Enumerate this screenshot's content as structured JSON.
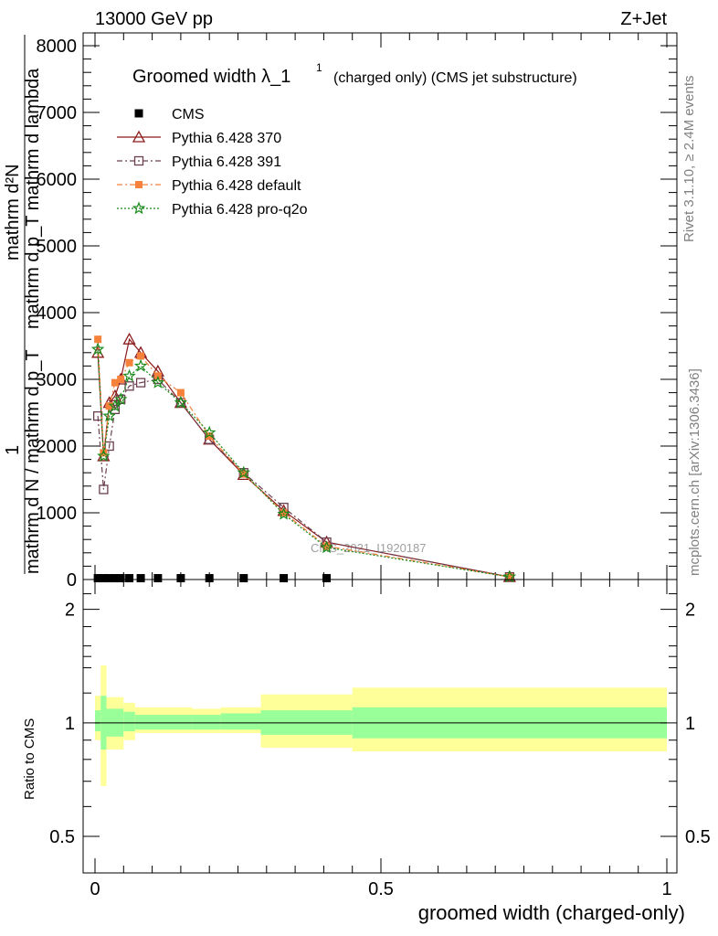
{
  "header": {
    "left": "13000 GeV pp",
    "right": "Z+Jet"
  },
  "side_labels": {
    "rivet": "Rivet 3.1.10, ≥ 2.4M events",
    "mcplots": "mcplots.cern.ch [arXiv:1306.3436]"
  },
  "colors": {
    "cms": "#000000",
    "p370": "#8b1a1a",
    "p391": "#6b4050",
    "pdefault": "#f5813a",
    "pq2o": "#1a8a1a",
    "band_inner": "#99ff99",
    "band_outer": "#ffff99"
  },
  "chart_data": [
    {
      "type": "line",
      "title": "Groomed width λ_1",
      "title_sup": "1",
      "title_note": "(charged only) (CMS jet substructure)",
      "ylabel_num": "mathrm d²N",
      "ylabel_num2": "mathrm d p_T mathrm d lambda",
      "ylabel_den": "mathrm d N / mathrm d p_T",
      "ylabel_one": "1",
      "watermark": "CMS_2021_I1920187",
      "xlim": [
        0,
        1
      ],
      "ylim": [
        0,
        8000
      ],
      "yticks": [
        0,
        1000,
        2000,
        3000,
        4000,
        5000,
        6000,
        7000,
        8000
      ],
      "yticklabels": [
        "0",
        "1000",
        "2000",
        "3000",
        "4000",
        "5000",
        "6000",
        "7000",
        "8000"
      ],
      "series": [
        {
          "name": "CMS",
          "key": "cms",
          "marker": "square",
          "x": [
            0.005,
            0.015,
            0.025,
            0.035,
            0.045,
            0.06,
            0.08,
            0.11,
            0.15,
            0.2,
            0.26,
            0.33,
            0.405
          ],
          "y": [
            20,
            20,
            20,
            20,
            20,
            20,
            20,
            20,
            20,
            20,
            20,
            20,
            20
          ]
        },
        {
          "name": "Pythia 6.428 370",
          "key": "p370",
          "marker": "triangle",
          "dash": "",
          "x": [
            0.005,
            0.015,
            0.025,
            0.035,
            0.045,
            0.06,
            0.08,
            0.11,
            0.15,
            0.2,
            0.26,
            0.33,
            0.405,
            0.725
          ],
          "y": [
            3400,
            1850,
            2650,
            2750,
            3000,
            3600,
            3400,
            3120,
            2650,
            2100,
            1570,
            1030,
            560,
            40
          ]
        },
        {
          "name": "Pythia 6.428 391",
          "key": "p391",
          "marker": "opensquare",
          "dash": "6,3,2,3",
          "x": [
            0.005,
            0.015,
            0.025,
            0.035,
            0.045,
            0.06,
            0.08,
            0.11,
            0.15,
            0.2,
            0.26,
            0.33,
            0.405,
            0.725
          ],
          "y": [
            2450,
            1350,
            2000,
            2550,
            2700,
            2900,
            2950,
            3000,
            2650,
            2100,
            1600,
            1080,
            560,
            40
          ]
        },
        {
          "name": "Pythia 6.428 default",
          "key": "pdefault",
          "marker": "fsquare",
          "dash": "6,3,2,3",
          "x": [
            0.005,
            0.015,
            0.025,
            0.035,
            0.045,
            0.06,
            0.08,
            0.11,
            0.15,
            0.2,
            0.26,
            0.33,
            0.405,
            0.725
          ],
          "y": [
            3600,
            1900,
            2600,
            2950,
            3000,
            3250,
            3350,
            3050,
            2800,
            2150,
            1580,
            1000,
            500,
            40
          ]
        },
        {
          "name": "Pythia 6.428 pro-q2o",
          "key": "pq2o",
          "marker": "star",
          "dash": "2,2",
          "x": [
            0.005,
            0.015,
            0.025,
            0.035,
            0.045,
            0.06,
            0.08,
            0.11,
            0.15,
            0.2,
            0.26,
            0.33,
            0.405,
            0.725
          ],
          "y": [
            3450,
            1850,
            2450,
            2600,
            2700,
            3050,
            3200,
            2950,
            2650,
            2200,
            1600,
            980,
            480,
            40
          ]
        }
      ]
    },
    {
      "type": "area",
      "ylabel": "Ratio to CMS",
      "xlabel": "groomed width (charged-only)",
      "xlim": [
        -0.02,
        1.01
      ],
      "ylim": [
        0.4,
        2.4
      ],
      "log_y": true,
      "xticks": [
        0,
        0.5,
        1
      ],
      "xticklabels": [
        "0",
        "0.5",
        "1"
      ],
      "yticks": [
        0.5,
        1,
        2
      ],
      "yticklabels": [
        "0.5",
        "1",
        "2"
      ],
      "bins": [
        {
          "x0": 0.0,
          "x1": 0.01,
          "inner": [
            0.95,
            1.08
          ],
          "outer": [
            0.9,
            1.18
          ]
        },
        {
          "x0": 0.01,
          "x1": 0.02,
          "inner": [
            0.85,
            1.18
          ],
          "outer": [
            0.68,
            1.42
          ]
        },
        {
          "x0": 0.02,
          "x1": 0.05,
          "inner": [
            0.92,
            1.09
          ],
          "outer": [
            0.85,
            1.17
          ]
        },
        {
          "x0": 0.05,
          "x1": 0.07,
          "inner": [
            0.95,
            1.07
          ],
          "outer": [
            0.9,
            1.13
          ]
        },
        {
          "x0": 0.07,
          "x1": 0.17,
          "inner": [
            0.96,
            1.05
          ],
          "outer": [
            0.94,
            1.1
          ]
        },
        {
          "x0": 0.17,
          "x1": 0.22,
          "inner": [
            0.96,
            1.05
          ],
          "outer": [
            0.94,
            1.09
          ]
        },
        {
          "x0": 0.22,
          "x1": 0.29,
          "inner": [
            0.96,
            1.06
          ],
          "outer": [
            0.94,
            1.1
          ]
        },
        {
          "x0": 0.29,
          "x1": 0.45,
          "inner": [
            0.93,
            1.08
          ],
          "outer": [
            0.86,
            1.19
          ]
        },
        {
          "x0": 0.45,
          "x1": 1.0,
          "inner": [
            0.91,
            1.1
          ],
          "outer": [
            0.84,
            1.24
          ]
        }
      ],
      "reference_line": 1
    }
  ]
}
